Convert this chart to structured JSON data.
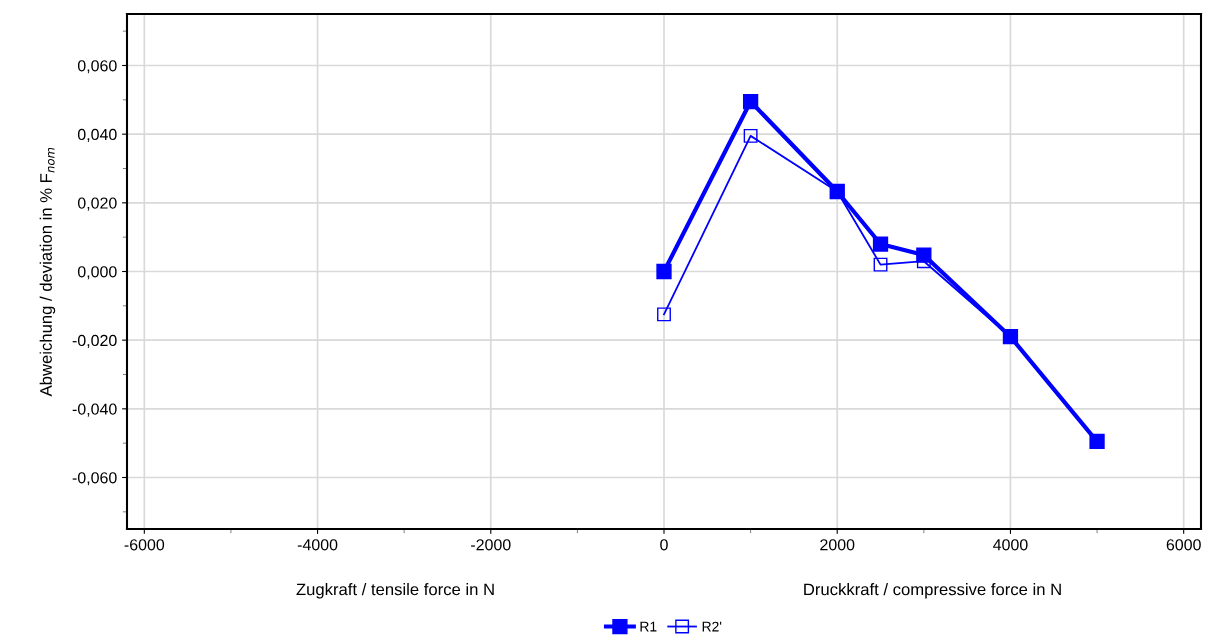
{
  "chart_data": {
    "type": "line",
    "ylabel": "Abweichung / deviation in % F$_{nom}$",
    "annotations": [
      "Zugkraft / tensile force in N",
      "Druckkraft / compressive force in N"
    ],
    "x": [
      0,
      1000,
      2000,
      2500,
      3000,
      4000,
      5000
    ],
    "series": [
      {
        "name": "R1",
        "color": "#0000ff",
        "values": [
          0.0,
          0.0495,
          0.0233,
          0.008,
          0.0048,
          -0.019,
          -0.0495
        ],
        "marker": "square"
      },
      {
        "name": "R2'",
        "color": "#0000ff",
        "values": [
          -0.0125,
          0.0395,
          0.0233,
          0.002,
          0.003,
          -0.019,
          -0.0495
        ],
        "marker": "square"
      }
    ],
    "xlim": [
      -6200,
      6200
    ],
    "xticks": [
      -6000,
      -4000,
      -2000,
      0,
      2000,
      4000,
      6000
    ],
    "ylim": [
      -0.075,
      0.075
    ],
    "yticks": [
      {
        "value": -0.06,
        "label": "-0,060"
      },
      {
        "value": -0.04,
        "label": "-0,040"
      },
      {
        "value": -0.02,
        "label": "-0,020"
      },
      {
        "value": 0.0,
        "label": "0,000"
      },
      {
        "value": 0.02,
        "label": "0,020"
      },
      {
        "value": 0.04,
        "label": "0,040"
      },
      {
        "value": 0.06,
        "label": "0,060"
      }
    ],
    "grid": true,
    "legend": "bottom",
    "line_style": "solid"
  }
}
